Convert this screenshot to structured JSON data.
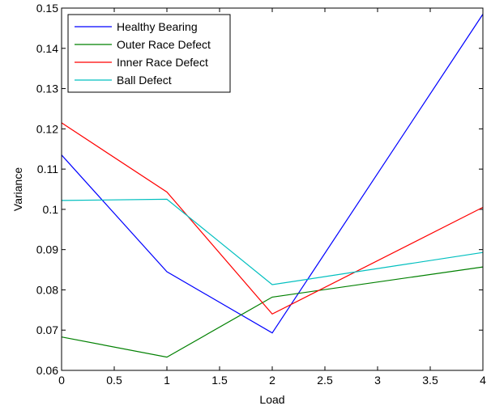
{
  "chart_data": {
    "type": "line",
    "title": "",
    "xlabel": "Load",
    "ylabel": "Variance",
    "xlim": [
      0,
      4
    ],
    "ylim": [
      0.06,
      0.15
    ],
    "grid": false,
    "legend_position": "top-left",
    "x": [
      0,
      1,
      2,
      3,
      4
    ],
    "x_ticks": [
      "0",
      "0.5",
      "1",
      "1.5",
      "2",
      "2.5",
      "3",
      "3.5",
      "4"
    ],
    "y_ticks": [
      "0.06",
      "0.07",
      "0.08",
      "0.09",
      "0.1",
      "0.11",
      "0.12",
      "0.13",
      "0.14",
      "0.15"
    ],
    "series": [
      {
        "name": "Healthy Bearing",
        "color": "#0000ff",
        "points": [
          [
            0,
            0.1135
          ],
          [
            1,
            0.0845
          ],
          [
            2,
            0.0693
          ],
          [
            4,
            0.1485
          ]
        ]
      },
      {
        "name": "Outer Race Defect",
        "color": "#008000",
        "points": [
          [
            0,
            0.0683
          ],
          [
            1,
            0.0633
          ],
          [
            2,
            0.0782
          ],
          [
            4,
            0.0857
          ]
        ]
      },
      {
        "name": "Inner Race Defect",
        "color": "#ff0000",
        "points": [
          [
            0,
            0.1215
          ],
          [
            1,
            0.1043
          ],
          [
            2,
            0.074
          ],
          [
            4,
            0.1005
          ]
        ]
      },
      {
        "name": "Ball Defect",
        "color": "#00bfbf",
        "points": [
          [
            0,
            0.1022
          ],
          [
            1,
            0.1025
          ],
          [
            2,
            0.0813
          ],
          [
            4,
            0.0893
          ]
        ]
      }
    ]
  }
}
